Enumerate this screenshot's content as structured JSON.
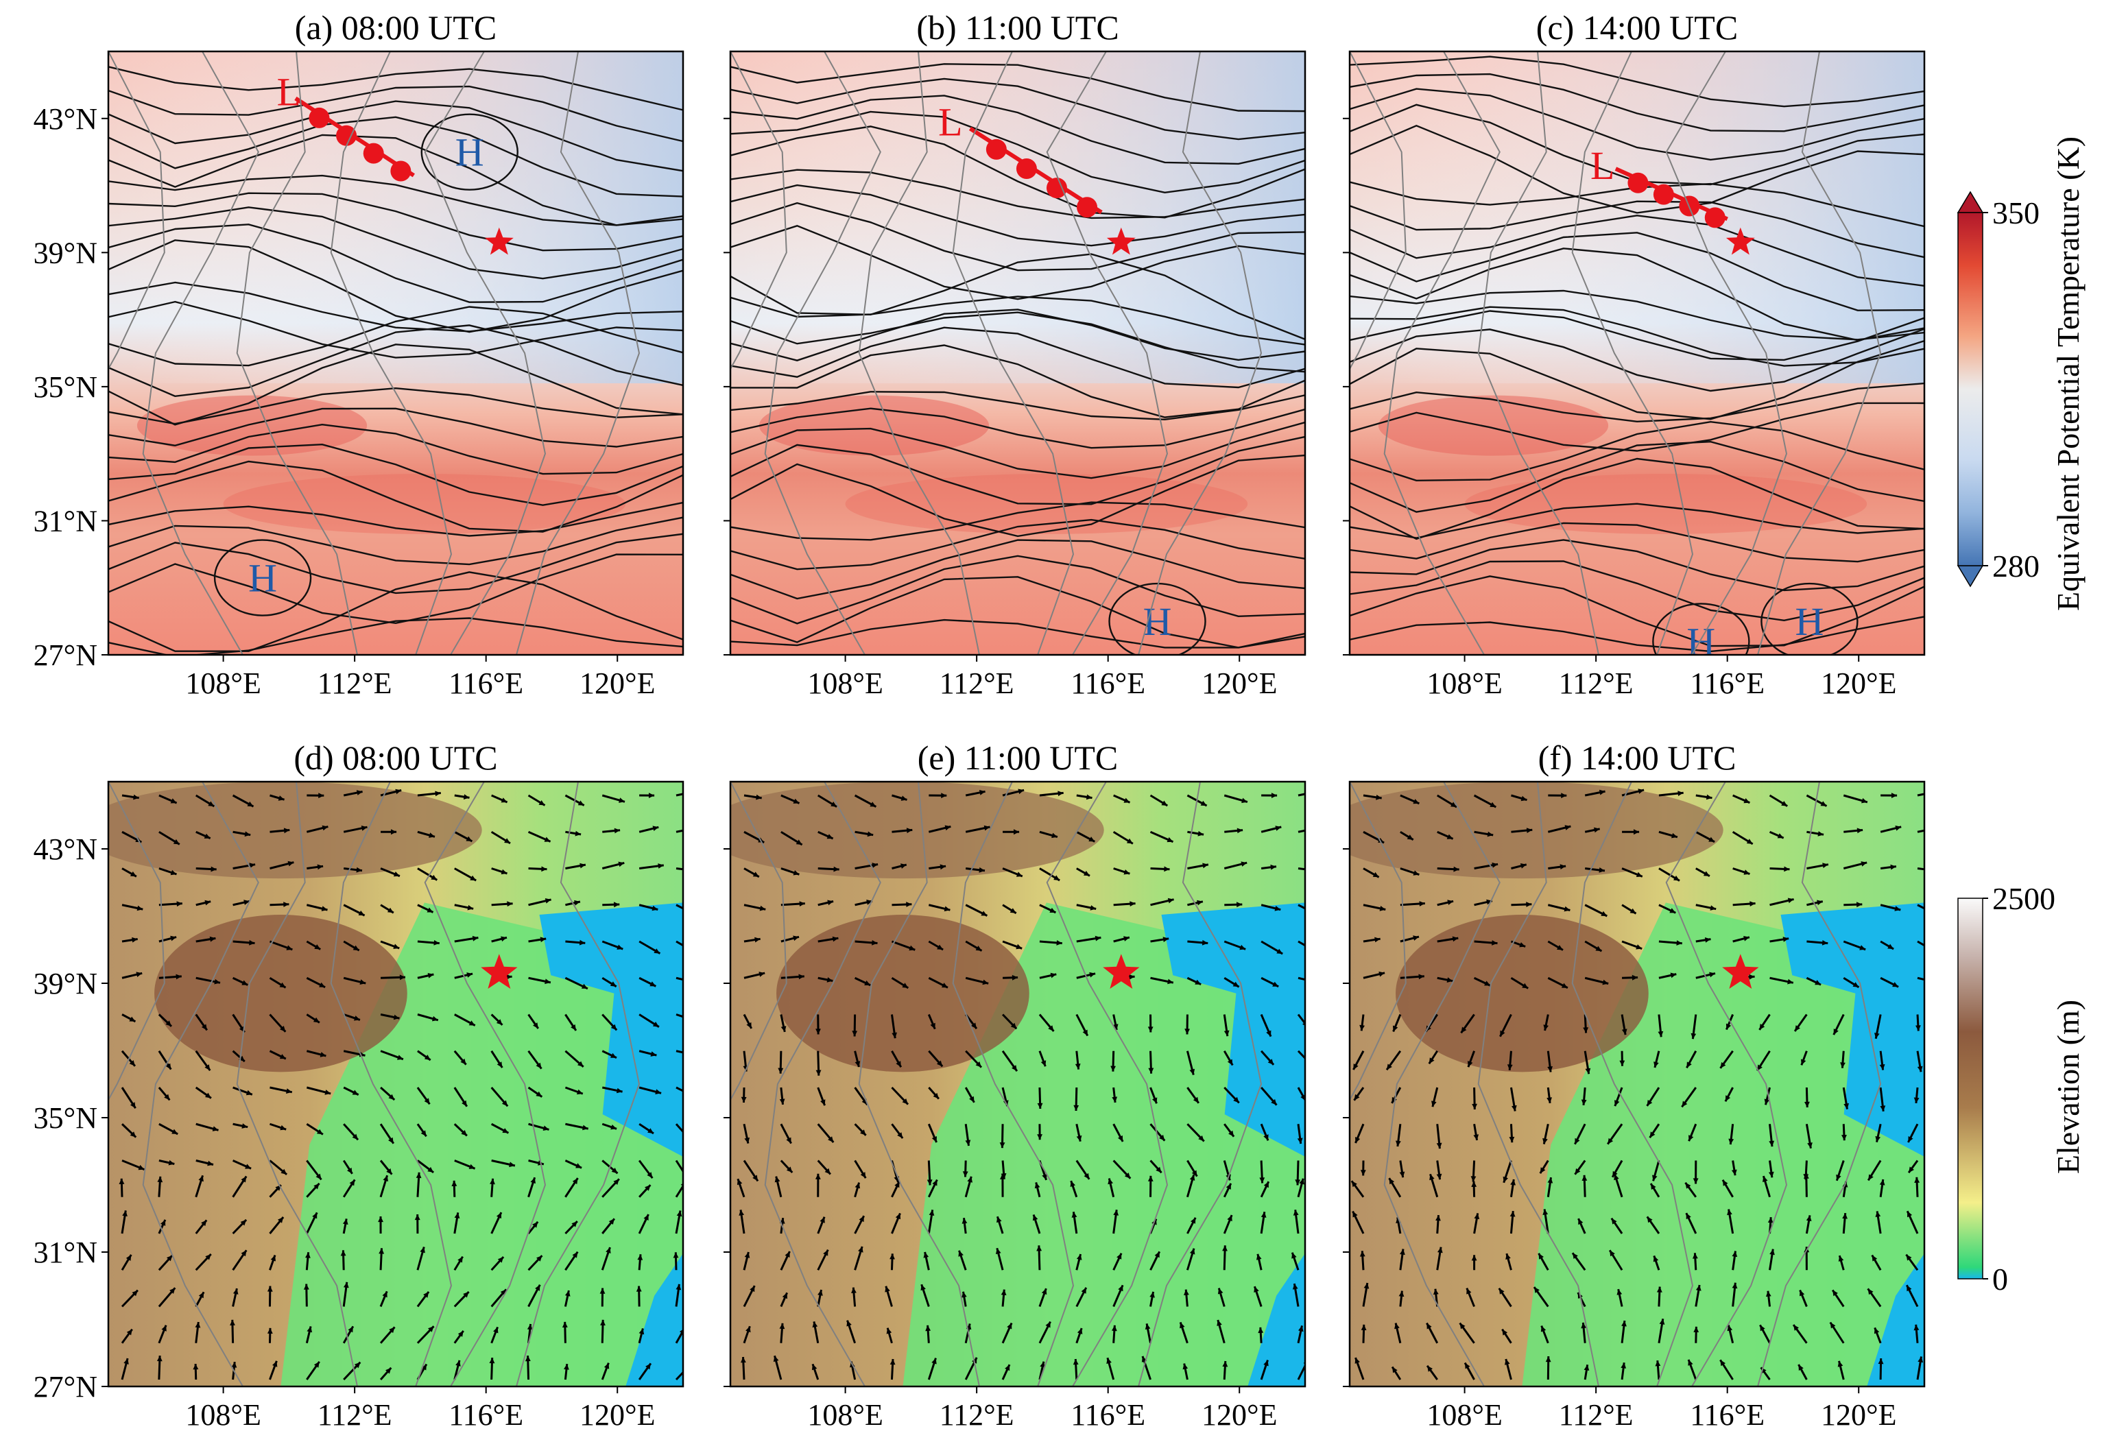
{
  "figure": {
    "panels": [
      {
        "id": "a",
        "title": "(a) 08:00 UTC",
        "kind": "theta_e",
        "markers": [
          {
            "letter": "L",
            "lon": 110.0,
            "lat": 43.8,
            "color": "#e8141c"
          },
          {
            "letter": "H",
            "lon": 115.5,
            "lat": 42.0,
            "color": "#1f5aa8"
          },
          {
            "letter": "H",
            "lon": 109.2,
            "lat": 29.3,
            "color": "#1f5aa8"
          }
        ],
        "front": [
          [
            110.2,
            43.6
          ],
          [
            113.8,
            41.3
          ]
        ]
      },
      {
        "id": "b",
        "title": "(b) 11:00 UTC",
        "kind": "theta_e",
        "markers": [
          {
            "letter": "L",
            "lon": 111.2,
            "lat": 42.9,
            "color": "#e8141c"
          },
          {
            "letter": "H",
            "lon": 117.5,
            "lat": 28.0,
            "color": "#1f5aa8"
          }
        ],
        "front": [
          [
            111.8,
            42.7
          ],
          [
            115.8,
            40.2
          ]
        ]
      },
      {
        "id": "c",
        "title": "(c) 14:00 UTC",
        "kind": "theta_e",
        "markers": [
          {
            "letter": "L",
            "lon": 112.2,
            "lat": 41.6,
            "color": "#e8141c"
          },
          {
            "letter": "H",
            "lon": 115.2,
            "lat": 27.4,
            "color": "#1f5aa8"
          },
          {
            "letter": "H",
            "lon": 118.5,
            "lat": 28.0,
            "color": "#1f5aa8"
          }
        ],
        "front": [
          [
            112.6,
            41.5
          ],
          [
            116.0,
            40.0
          ]
        ]
      },
      {
        "id": "d",
        "title": "(d) 08:00 UTC",
        "kind": "elevation"
      },
      {
        "id": "e",
        "title": "(e) 11:00 UTC",
        "kind": "elevation"
      },
      {
        "id": "f",
        "title": "(f) 14:00 UTC",
        "kind": "elevation"
      }
    ],
    "lon_range": [
      104.5,
      122
    ],
    "lat_range": [
      27,
      45
    ],
    "x_ticks": [
      108,
      112,
      116,
      120
    ],
    "x_tick_labels": [
      "108°E",
      "112°E",
      "116°E",
      "120°E"
    ],
    "y_ticks": [
      27,
      31,
      35,
      39,
      43
    ],
    "y_tick_labels": [
      "27°N",
      "31°N",
      "35°N",
      "39°N",
      "43°N"
    ],
    "station": {
      "lon": 116.4,
      "lat": 39.3,
      "color": "#e8141c",
      "icon": "star-icon"
    },
    "colorbar_top": {
      "label": "Equivalent Potential Temperature (K)",
      "ticks": [
        "350",
        "280"
      ],
      "colors": [
        "#b2182b",
        "#e34a33",
        "#f4a582",
        "#fbd5c4",
        "#ececec",
        "#c9daf0",
        "#92b4dd",
        "#4575b4"
      ],
      "extend": "both"
    },
    "colorbar_bottom": {
      "label": "Elevation (m)",
      "ticks": [
        "2500",
        "0"
      ],
      "colors": [
        "#fafafa",
        "#c8b4ae",
        "#8c5a3e",
        "#a87c4c",
        "#d6c173",
        "#f4ef8a",
        "#7de07e",
        "#2ed87a",
        "#1ab7ea"
      ]
    }
  }
}
